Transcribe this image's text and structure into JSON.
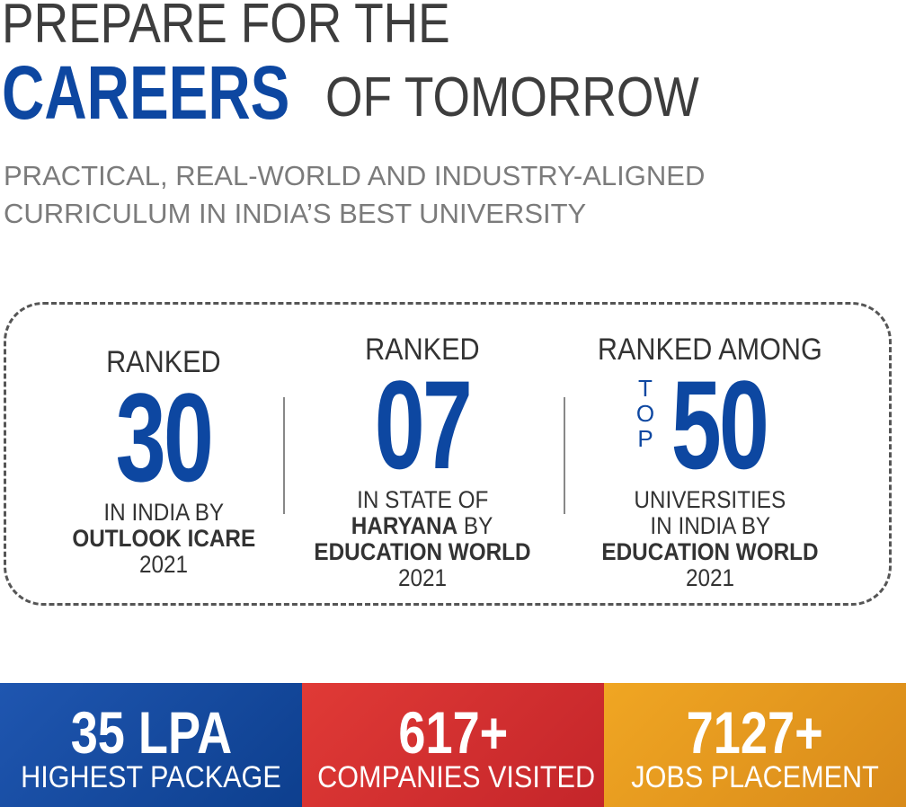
{
  "header": {
    "line1": "PREPARE FOR THE",
    "highlight": "CAREERS",
    "line2_rest": "OF TOMORROW",
    "subtitle_line1": "PRACTICAL, REAL-WORLD AND INDUSTRY-ALIGNED",
    "subtitle_line2": "CURRICULUM IN INDIA’S BEST UNIVERSITY"
  },
  "rankings": [
    {
      "ranked": "RANKED",
      "number": "30",
      "line1": "IN INDIA BY",
      "line2_bold": "OUTLOOK ICARE",
      "year": "2021"
    },
    {
      "ranked": "RANKED",
      "number": "07",
      "line1": "IN STATE OF",
      "line2_bold": "HARYANA",
      "line2_rest": " BY",
      "line3_bold": "EDUCATION WORLD",
      "year": "2021"
    },
    {
      "ranked": "RANKED AMONG",
      "top_letters": [
        "T",
        "O",
        "P"
      ],
      "number": "50",
      "line1": "UNIVERSITIES",
      "line2": "IN INDIA BY",
      "line3_bold": "EDUCATION WORLD",
      "year": "2021"
    }
  ],
  "stats": [
    {
      "value": "35 LPA",
      "label": "HIGHEST PACKAGE",
      "color": "#0d47a1"
    },
    {
      "value": "617+",
      "label": "COMPANIES VISITED",
      "color": "#d32f2f"
    },
    {
      "value": "7127+",
      "label": "JOBS PLACEMENT",
      "color": "#f0a020"
    }
  ]
}
